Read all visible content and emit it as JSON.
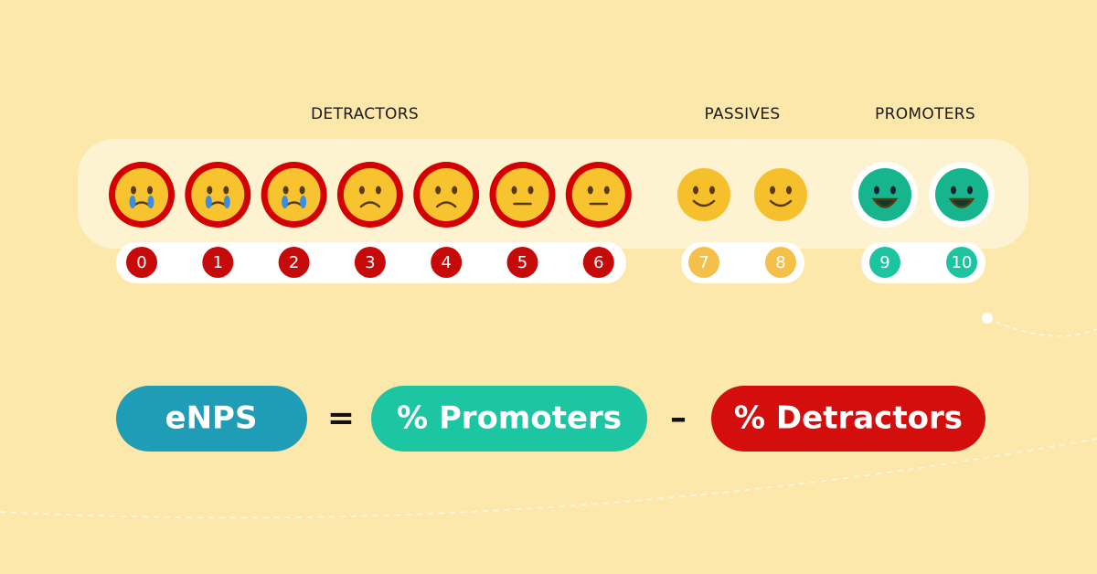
{
  "groups": [
    {
      "label": "DETRACTORS",
      "scores": [
        0,
        1,
        2,
        3,
        4,
        5,
        6
      ]
    },
    {
      "label": "PASSIVES",
      "scores": [
        7,
        8
      ]
    },
    {
      "label": "PROMOTERS",
      "scores": [
        9,
        10
      ]
    }
  ],
  "formula": {
    "result": "eNPS",
    "equals": "=",
    "minuend": "% Promoters",
    "minus": "–",
    "subtrahend": "% Detractors"
  }
}
